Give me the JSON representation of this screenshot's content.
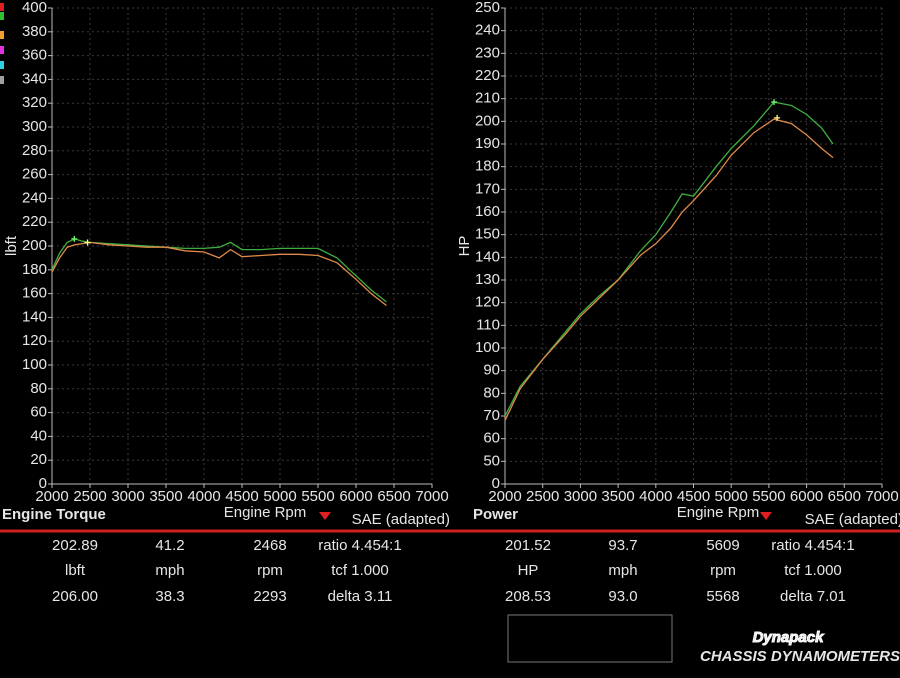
{
  "chart_data": [
    {
      "type": "line",
      "title": "Engine Torque",
      "x_label": "Engine Rpm",
      "y_label": "lbft",
      "y_scale": "linear",
      "x": [
        2000,
        2100,
        2200,
        2300,
        2400,
        2500,
        2750,
        3000,
        3250,
        3500,
        3750,
        4000,
        4200,
        4350,
        4500,
        4750,
        5000,
        5250,
        5500,
        5750,
        6000,
        6200,
        6400
      ],
      "series": [
        {
          "color": "#3fae3f",
          "values": [
            180,
            194,
            203,
            206,
            204,
            203,
            202,
            201,
            200,
            199,
            198,
            198,
            199,
            203,
            197,
            197,
            198,
            198,
            198,
            190,
            175,
            163,
            153
          ],
          "marker": {
            "x": 2293,
            "y": 206
          }
        },
        {
          "color": "#e08a4a",
          "values": [
            178,
            190,
            199,
            201,
            202,
            203,
            201,
            200,
            199,
            199,
            196,
            195,
            190,
            197,
            191,
            192,
            193,
            193,
            192,
            186,
            172,
            160,
            150
          ],
          "marker": {
            "x": 2468,
            "y": 202.89
          }
        }
      ],
      "xlim": [
        2000,
        7000
      ],
      "xticks": [
        2000,
        2500,
        3000,
        3500,
        4000,
        4500,
        5000,
        5500,
        6000,
        6500,
        7000
      ],
      "ylim": [
        0,
        400
      ],
      "yticks": [
        0,
        20,
        40,
        60,
        80,
        100,
        120,
        140,
        160,
        180,
        200,
        220,
        240,
        260,
        280,
        300,
        320,
        340,
        360,
        380,
        400
      ],
      "grid": true
    },
    {
      "type": "line",
      "title": "Power",
      "x_label": "Engine Rpm",
      "y_label": "HP",
      "y_scale": "broken",
      "x": [
        2000,
        2200,
        2500,
        2800,
        3000,
        3250,
        3500,
        3800,
        4000,
        4200,
        4350,
        4500,
        4800,
        5000,
        5300,
        5568,
        5800,
        6000,
        6200,
        6350
      ],
      "series": [
        {
          "color": "#3fae3f",
          "values": [
            70,
            83,
            95,
            107,
            115,
            123,
            130,
            143,
            150,
            160,
            168,
            167,
            180,
            188,
            198,
            208.5,
            207,
            203,
            197,
            190
          ],
          "marker": {
            "x": 5568,
            "y": 208.53
          }
        },
        {
          "color": "#e08a4a",
          "values": [
            68,
            82,
            95,
            106,
            114,
            122,
            130,
            141,
            146,
            153,
            160,
            165,
            176,
            185,
            195,
            201,
            199,
            194,
            188,
            184
          ],
          "marker": {
            "x": 5609,
            "y": 201.52
          }
        }
      ],
      "xlim": [
        2000,
        7000
      ],
      "xticks": [
        2000,
        2500,
        3000,
        3500,
        4000,
        4500,
        5000,
        5500,
        6000,
        6500,
        7000
      ],
      "ylim": [
        0,
        250
      ],
      "yticks": [
        0,
        50,
        60,
        70,
        80,
        90,
        100,
        110,
        120,
        130,
        140,
        150,
        160,
        170,
        180,
        190,
        200,
        210,
        220,
        230,
        240,
        250
      ],
      "grid": true
    }
  ],
  "panels": [
    {
      "note": "SAE (adapted)",
      "rows": [
        [
          "202.89",
          "41.2",
          "2468",
          "ratio 4.454:1"
        ],
        [
          "lbft",
          "mph",
          "rpm",
          "tcf 1.000"
        ],
        [
          "206.00",
          "38.3",
          "2293",
          "delta 3.11"
        ]
      ]
    },
    {
      "note": "SAE (adapted)",
      "rows": [
        [
          "201.52",
          "93.7",
          "5609",
          "ratio 4.454:1"
        ],
        [
          "HP",
          "mph",
          "rpm",
          "tcf 1.000"
        ],
        [
          "208.53",
          "93.0",
          "5568",
          "delta 7.01"
        ]
      ]
    }
  ],
  "logo": {
    "name": "Dynapack",
    "tagline": "CHASSIS DYNAMOMETERS"
  }
}
